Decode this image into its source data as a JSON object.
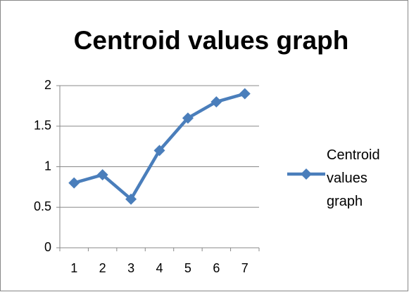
{
  "chart_data": {
    "type": "line",
    "title": "Centroid values graph",
    "categories": [
      "1",
      "2",
      "3",
      "4",
      "5",
      "6",
      "7"
    ],
    "series": [
      {
        "name": "Centroid values graph",
        "color": "#4a7ebb",
        "values": [
          0.8,
          0.9,
          0.6,
          1.2,
          1.6,
          1.8,
          1.9
        ]
      }
    ],
    "ylim": [
      0,
      2
    ],
    "yticks": [
      0,
      0.5,
      1,
      1.5,
      2
    ],
    "grid": true,
    "legend": "right"
  }
}
